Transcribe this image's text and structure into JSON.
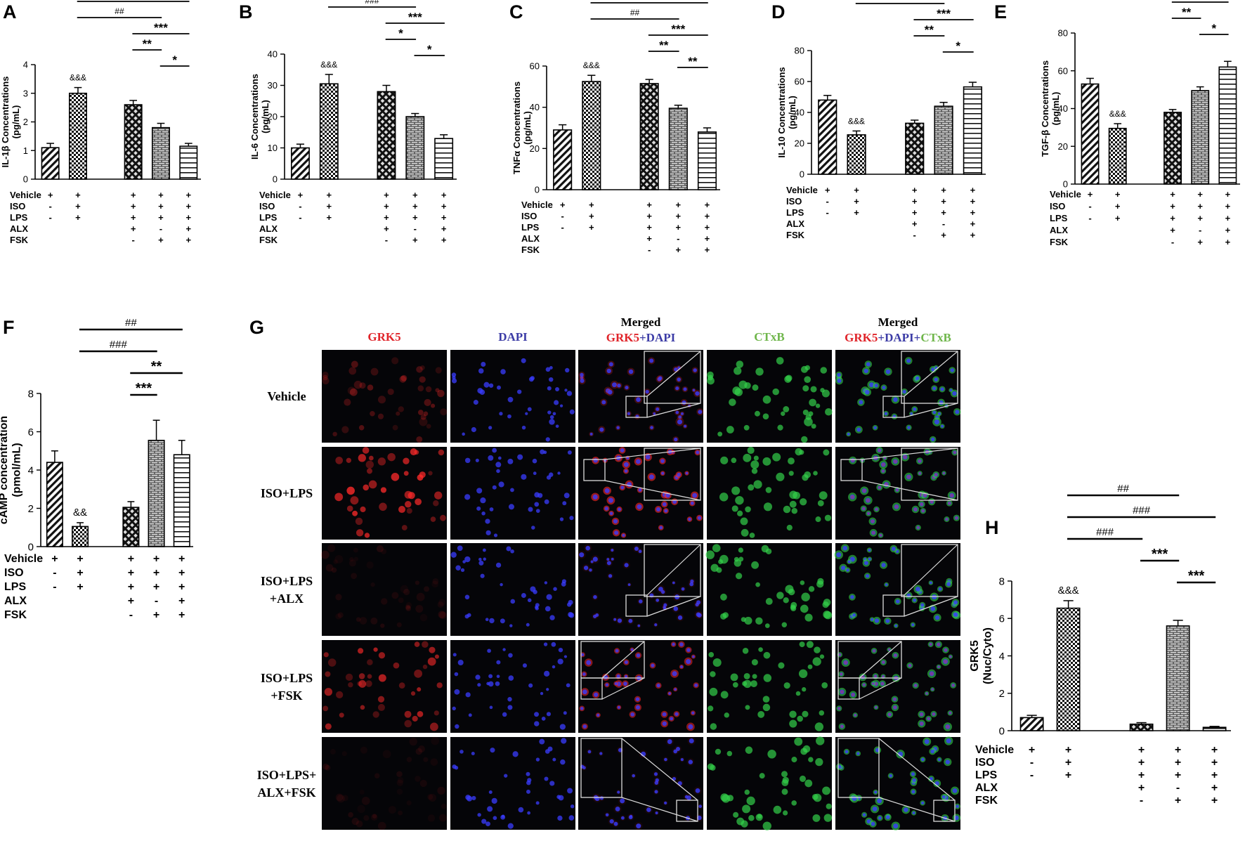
{
  "panel_g": {
    "letter": "G",
    "columns": [
      {
        "lines": [
          [
            {
              "t": "GRK5",
              "c": "red"
            }
          ]
        ]
      },
      {
        "lines": [
          [
            {
              "t": "DAPI",
              "c": "blue"
            }
          ]
        ]
      },
      {
        "lines": [
          [
            {
              "t": "Merged",
              "c": "black"
            }
          ],
          [
            {
              "t": "GRK5",
              "c": "red"
            },
            {
              "t": "+DAPI",
              "c": "blue"
            }
          ]
        ]
      },
      {
        "lines": [
          [
            {
              "t": "CTxB",
              "c": "green"
            }
          ]
        ]
      },
      {
        "lines": [
          [
            {
              "t": "Merged",
              "c": "black"
            }
          ],
          [
            {
              "t": "GRK5",
              "c": "red"
            },
            {
              "t": "+DAPI",
              "c": "blue"
            },
            {
              "t": "+",
              "c": "blue"
            },
            {
              "t": "CTxB",
              "c": "green"
            }
          ]
        ]
      }
    ],
    "rows": [
      {
        "label": [
          "Vehicle"
        ],
        "grk5": 0.35,
        "nuclear": false
      },
      {
        "label": [
          "ISO+LPS"
        ],
        "grk5": 0.85,
        "nuclear": true
      },
      {
        "label": [
          "ISO+LPS",
          "+ALX"
        ],
        "grk5": 0.12,
        "nuclear": false
      },
      {
        "label": [
          "ISO+LPS",
          "+FSK"
        ],
        "grk5": 0.75,
        "nuclear": true
      },
      {
        "label": [
          "ISO+LPS+",
          "ALX+FSK"
        ],
        "grk5": 0.1,
        "nuclear": false
      }
    ]
  },
  "colors": {
    "red_text": "#e0242a",
    "blue_text": "#3c3ca6",
    "green_text": "#6fb64b",
    "grk5_red": "#ff2a2a",
    "dapi_blue": "#3a3cff",
    "ctxb_green": "#33d04a"
  },
  "chart_data": [
    {
      "panel": "A",
      "type": "bar",
      "ylabel": "IL-1β Concentrations (pg/mL)",
      "ylim": [
        0,
        4
      ],
      "yticks": [
        0,
        1,
        2,
        3,
        4
      ],
      "values": [
        1.1,
        3.0,
        2.6,
        1.8,
        1.15
      ],
      "errors": [
        0.15,
        0.2,
        0.15,
        0.15,
        0.1
      ],
      "patterns": [
        "diag",
        "check",
        "cross",
        "brick",
        "hline"
      ],
      "group_labels": [
        "Vehicle",
        "ISO",
        "LPS",
        "ALX",
        "FSK"
      ],
      "signs": [
        [
          "+",
          "-",
          "-",
          "",
          ""
        ],
        [
          "+",
          "+",
          "+",
          "",
          ""
        ],
        [
          "+",
          "+",
          "+",
          "+",
          "-"
        ],
        [
          "+",
          "+",
          "+",
          "-",
          "+"
        ],
        [
          "+",
          "+",
          "+",
          "+",
          "+"
        ]
      ],
      "bar_annotations": [
        {
          "bar": 1,
          "text": "&&&"
        }
      ],
      "comparisons": [
        {
          "from": 1,
          "to": 4,
          "text": "###"
        },
        {
          "from": 1,
          "to": 3,
          "text": "##"
        },
        {
          "from": 2,
          "to": 4,
          "text": "***"
        },
        {
          "from": 2,
          "to": 3,
          "text": "**"
        },
        {
          "from": 3,
          "to": 4,
          "text": "*"
        }
      ]
    },
    {
      "panel": "B",
      "type": "bar",
      "ylabel": "IL-6 Concentrations (pg/mL)",
      "ylim": [
        0,
        40
      ],
      "yticks": [
        0,
        10,
        20,
        30,
        40
      ],
      "values": [
        10,
        30.5,
        28,
        20,
        13
      ],
      "errors": [
        1.2,
        3.0,
        2.0,
        1.0,
        1.2
      ],
      "patterns": [
        "diag",
        "check",
        "cross",
        "brick",
        "hline"
      ],
      "group_labels": [
        "Vehicle",
        "ISO",
        "LPS",
        "ALX",
        "FSK"
      ],
      "signs": [
        [
          "+",
          "-",
          "-",
          "",
          ""
        ],
        [
          "+",
          "+",
          "+",
          "",
          ""
        ],
        [
          "+",
          "+",
          "+",
          "+",
          "-"
        ],
        [
          "+",
          "+",
          "+",
          "-",
          "+"
        ],
        [
          "+",
          "+",
          "+",
          "+",
          "+"
        ]
      ],
      "bar_annotations": [
        {
          "bar": 1,
          "text": "&&&"
        }
      ],
      "comparisons": [
        {
          "from": 1,
          "to": 4,
          "text": "###"
        },
        {
          "from": 1,
          "to": 3,
          "text": "###"
        },
        {
          "from": 2,
          "to": 4,
          "text": "***"
        },
        {
          "from": 2,
          "to": 3,
          "text": "*"
        },
        {
          "from": 3,
          "to": 4,
          "text": "*"
        }
      ]
    },
    {
      "panel": "C",
      "type": "bar",
      "ylabel": "TNFα Concentrations (pg/mL)",
      "ylim": [
        0,
        60
      ],
      "yticks": [
        0,
        20,
        40,
        60
      ],
      "values": [
        29,
        52.5,
        51.5,
        39.5,
        28
      ],
      "errors": [
        2.5,
        3.0,
        2.0,
        1.5,
        2.0
      ],
      "patterns": [
        "diag",
        "check",
        "cross",
        "brick",
        "hline"
      ],
      "group_labels": [
        "Vehicle",
        "ISO",
        "LPS",
        "ALX",
        "FSK"
      ],
      "signs": [
        [
          "+",
          "-",
          "-",
          "",
          ""
        ],
        [
          "+",
          "+",
          "+",
          "",
          ""
        ],
        [
          "+",
          "+",
          "+",
          "+",
          "-"
        ],
        [
          "+",
          "+",
          "+",
          "-",
          "+"
        ],
        [
          "+",
          "+",
          "+",
          "+",
          "+"
        ]
      ],
      "bar_annotations": [
        {
          "bar": 1,
          "text": "&&&"
        }
      ],
      "comparisons": [
        {
          "from": 1,
          "to": 4,
          "text": "###"
        },
        {
          "from": 1,
          "to": 3,
          "text": "##"
        },
        {
          "from": 2,
          "to": 4,
          "text": "***"
        },
        {
          "from": 2,
          "to": 3,
          "text": "**"
        },
        {
          "from": 3,
          "to": 4,
          "text": "**"
        }
      ]
    },
    {
      "panel": "D",
      "type": "bar",
      "ylabel": "IL-10 Concentrations (pg/mL)",
      "ylim": [
        0,
        80
      ],
      "yticks": [
        0,
        20,
        40,
        60,
        80
      ],
      "values": [
        48,
        25.5,
        33,
        44,
        56.5
      ],
      "errors": [
        3.0,
        2.5,
        2.0,
        2.5,
        3.0
      ],
      "patterns": [
        "diag",
        "check",
        "cross",
        "brick",
        "hline"
      ],
      "group_labels": [
        "Vehicle",
        "ISO",
        "LPS",
        "ALX",
        "FSK"
      ],
      "signs": [
        [
          "+",
          "-",
          "-",
          "",
          ""
        ],
        [
          "+",
          "+",
          "+",
          "",
          ""
        ],
        [
          "+",
          "+",
          "+",
          "+",
          "-"
        ],
        [
          "+",
          "+",
          "+",
          "-",
          "+"
        ],
        [
          "+",
          "+",
          "+",
          "+",
          "+"
        ]
      ],
      "bar_annotations": [
        {
          "bar": 1,
          "text": "&&&"
        }
      ],
      "comparisons": [
        {
          "from": 1,
          "to": 4,
          "text": "###"
        },
        {
          "from": 1,
          "to": 3,
          "text": "###"
        },
        {
          "from": 2,
          "to": 4,
          "text": "***"
        },
        {
          "from": 2,
          "to": 3,
          "text": "**"
        },
        {
          "from": 3,
          "to": 4,
          "text": "*"
        }
      ]
    },
    {
      "panel": "E",
      "type": "bar",
      "ylabel": "TGF-β Concentrations (pg/mL)",
      "ylim": [
        0,
        80
      ],
      "yticks": [
        0,
        20,
        40,
        60,
        80
      ],
      "values": [
        53,
        29.5,
        38,
        49.5,
        62
      ],
      "errors": [
        3.0,
        2.5,
        1.5,
        2.0,
        3.0
      ],
      "patterns": [
        "diag",
        "check",
        "cross",
        "brick",
        "hline"
      ],
      "group_labels": [
        "Vehicle",
        "ISO",
        "LPS",
        "ALX",
        "FSK"
      ],
      "signs": [
        [
          "+",
          "-",
          "-",
          "",
          ""
        ],
        [
          "+",
          "+",
          "+",
          "",
          ""
        ],
        [
          "+",
          "+",
          "+",
          "+",
          "-"
        ],
        [
          "+",
          "+",
          "+",
          "-",
          "+"
        ],
        [
          "+",
          "+",
          "+",
          "+",
          "+"
        ]
      ],
      "bar_annotations": [
        {
          "bar": 1,
          "text": "&&&"
        }
      ],
      "comparisons": [
        {
          "from": 1,
          "to": 4,
          "text": "###"
        },
        {
          "from": 1,
          "to": 3,
          "text": "###"
        },
        {
          "from": 2,
          "to": 4,
          "text": "***"
        },
        {
          "from": 2,
          "to": 3,
          "text": "**"
        },
        {
          "from": 3,
          "to": 4,
          "text": "*"
        }
      ]
    },
    {
      "panel": "F",
      "type": "bar",
      "ylabel": "cAMP concentration (pmol/mL)",
      "ylim": [
        0,
        8
      ],
      "yticks": [
        0,
        2,
        4,
        6,
        8
      ],
      "values": [
        4.4,
        1.05,
        2.05,
        5.55,
        4.8
      ],
      "errors": [
        0.6,
        0.2,
        0.3,
        1.05,
        0.75
      ],
      "patterns": [
        "diag",
        "check",
        "cross",
        "brick",
        "hline"
      ],
      "group_labels": [
        "Vehicle",
        "ISO",
        "LPS",
        "ALX",
        "FSK"
      ],
      "signs": [
        [
          "+",
          "-",
          "-",
          "",
          ""
        ],
        [
          "+",
          "+",
          "+",
          "",
          ""
        ],
        [
          "+",
          "+",
          "+",
          "+",
          "-"
        ],
        [
          "+",
          "+",
          "+",
          "-",
          "+"
        ],
        [
          "+",
          "+",
          "+",
          "+",
          "+"
        ]
      ],
      "bar_annotations": [
        {
          "bar": 1,
          "text": "&&"
        }
      ],
      "comparisons": [
        {
          "from": 1,
          "to": 4,
          "text": "##"
        },
        {
          "from": 1,
          "to": 3,
          "text": "###"
        },
        {
          "from": 2,
          "to": 4,
          "text": "**"
        },
        {
          "from": 2,
          "to": 3,
          "text": "***"
        }
      ]
    },
    {
      "panel": "H",
      "type": "bar",
      "ylabel": "GRK5 (Nuc/Cyto)",
      "ylim": [
        0,
        8
      ],
      "yticks": [
        0,
        2,
        4,
        6,
        8
      ],
      "values": [
        0.7,
        6.55,
        0.35,
        5.6,
        0.18
      ],
      "errors": [
        0.12,
        0.4,
        0.08,
        0.3,
        0.05
      ],
      "patterns": [
        "diag",
        "check",
        "cross",
        "brick",
        "hline"
      ],
      "group_labels": [
        "Vehicle",
        "ISO",
        "LPS",
        "ALX",
        "FSK"
      ],
      "signs": [
        [
          "+",
          "-",
          "-",
          "",
          ""
        ],
        [
          "+",
          "+",
          "+",
          "",
          ""
        ],
        [
          "+",
          "+",
          "+",
          "+",
          "-"
        ],
        [
          "+",
          "+",
          "+",
          "-",
          "+"
        ],
        [
          "+",
          "+",
          "+",
          "+",
          "+"
        ]
      ],
      "bar_annotations": [
        {
          "bar": 1,
          "text": "&&&"
        }
      ],
      "comparisons": [
        {
          "from": 1,
          "to": 3,
          "text": "##"
        },
        {
          "from": 1,
          "to": 4,
          "text": "###"
        },
        {
          "from": 1,
          "to": 2,
          "text": "###"
        },
        {
          "from": 2,
          "to": 3,
          "text": "***"
        },
        {
          "from": 3,
          "to": 4,
          "text": "***"
        }
      ]
    }
  ]
}
